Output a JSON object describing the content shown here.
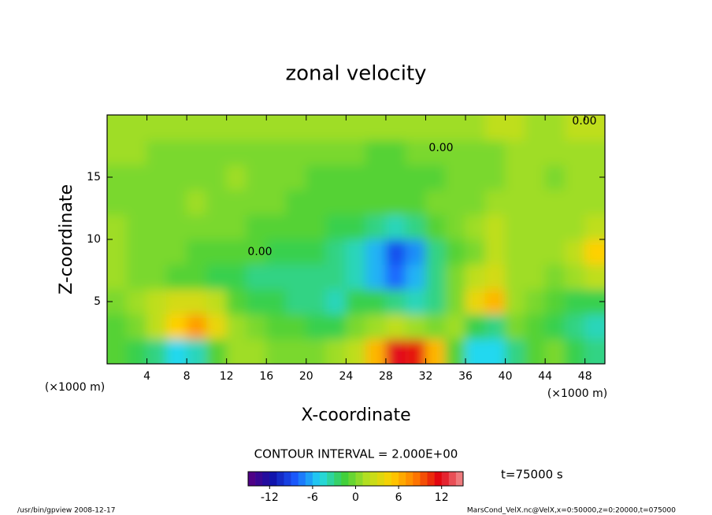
{
  "chart_data": {
    "type": "contour",
    "title": "zonal velocity",
    "xlabel": "X-coordinate",
    "ylabel": "Z-coordinate",
    "x_unit_label": "(×1000 m)",
    "y_unit_label": "(×1000 m)",
    "xlim": [
      0,
      50
    ],
    "ylim": [
      0,
      20
    ],
    "xticks": [
      4,
      8,
      12,
      16,
      20,
      24,
      28,
      32,
      36,
      40,
      44,
      48
    ],
    "yticks": [
      5,
      10,
      15
    ],
    "x": [
      1,
      3,
      5,
      7,
      9,
      11,
      13,
      15,
      17,
      19,
      21,
      23,
      25,
      27,
      29,
      31,
      33,
      35,
      37,
      39,
      41,
      43,
      45,
      47,
      49
    ],
    "z": [
      1,
      3,
      5,
      7,
      9,
      11,
      13,
      15,
      17,
      19
    ],
    "values": [
      [
        -1,
        -2,
        -3,
        -5,
        -4,
        -1,
        1,
        1,
        0,
        0,
        0,
        1,
        2,
        6,
        12,
        11,
        6,
        -1,
        -5,
        -5,
        -3,
        -1,
        0,
        -2,
        -3
      ],
      [
        -1,
        0,
        2,
        5,
        7,
        4,
        1,
        0,
        -1,
        -1,
        -2,
        -2,
        0,
        1,
        2,
        1,
        0,
        1,
        -2,
        -3,
        0,
        -1,
        -2,
        -3,
        -4
      ],
      [
        0,
        1,
        2,
        3,
        3,
        2,
        -1,
        -2,
        -2,
        -3,
        -3,
        -4,
        -2,
        -2,
        -3,
        -4,
        -3,
        0,
        4,
        6,
        1,
        0,
        -1,
        -2,
        -2
      ],
      [
        1,
        0,
        0,
        -1,
        -1,
        -2,
        -2,
        -3,
        -3,
        -3,
        -3,
        -3,
        -4,
        -6,
        -8,
        -6,
        -3,
        0,
        2,
        3,
        1,
        1,
        0,
        1,
        2
      ],
      [
        1,
        0,
        0,
        0,
        -1,
        -1,
        -1,
        -1,
        -2,
        -2,
        -2,
        -3,
        -4,
        -6,
        -9,
        -7,
        -3,
        -1,
        0,
        2,
        1,
        1,
        1,
        2,
        5
      ],
      [
        1,
        0,
        0,
        0,
        0,
        0,
        0,
        -1,
        -1,
        -1,
        -1,
        -2,
        -2,
        -3,
        -4,
        -3,
        -1,
        0,
        1,
        2,
        1,
        1,
        1,
        1,
        2
      ],
      [
        0,
        0,
        0,
        0,
        1,
        0,
        0,
        0,
        0,
        -1,
        -1,
        -1,
        -1,
        -1,
        -1,
        -1,
        0,
        0,
        0,
        1,
        1,
        1,
        1,
        1,
        1
      ],
      [
        0,
        0,
        0,
        0,
        0,
        0,
        1,
        0,
        0,
        0,
        -1,
        -1,
        -1,
        -1,
        -1,
        -1,
        -1,
        0,
        0,
        0,
        1,
        1,
        0,
        1,
        1
      ],
      [
        1,
        1,
        0,
        0,
        0,
        0,
        0,
        0,
        0,
        0,
        0,
        0,
        0,
        -1,
        -1,
        0,
        0,
        0,
        0,
        0,
        1,
        1,
        1,
        1,
        1
      ],
      [
        1,
        1,
        1,
        1,
        1,
        1,
        1,
        1,
        1,
        1,
        1,
        1,
        1,
        1,
        1,
        1,
        1,
        1,
        1,
        2,
        2,
        1,
        1,
        2,
        2
      ]
    ],
    "contour_labels": [
      "0.00",
      "0.00",
      "0.00"
    ],
    "contour_interval": "CONTOUR INTERVAL = 2.000E+00",
    "clim": [
      -15,
      15
    ],
    "cticks": [
      -12,
      -6,
      0,
      6,
      12
    ],
    "colormap": [
      "#5a0080",
      "#1010a8",
      "#1a5cff",
      "#22d8f0",
      "#3ccf3c",
      "#b8e020",
      "#ffd000",
      "#ff7a00",
      "#e00010",
      "#f09090"
    ],
    "time_label": "t=75000 s",
    "footer_left": "/usr/bin/gpview  2008-12-17",
    "footer_right": "MarsCond_VelX.nc@VelX,x=0:50000,z=0:20000,t=075000"
  }
}
